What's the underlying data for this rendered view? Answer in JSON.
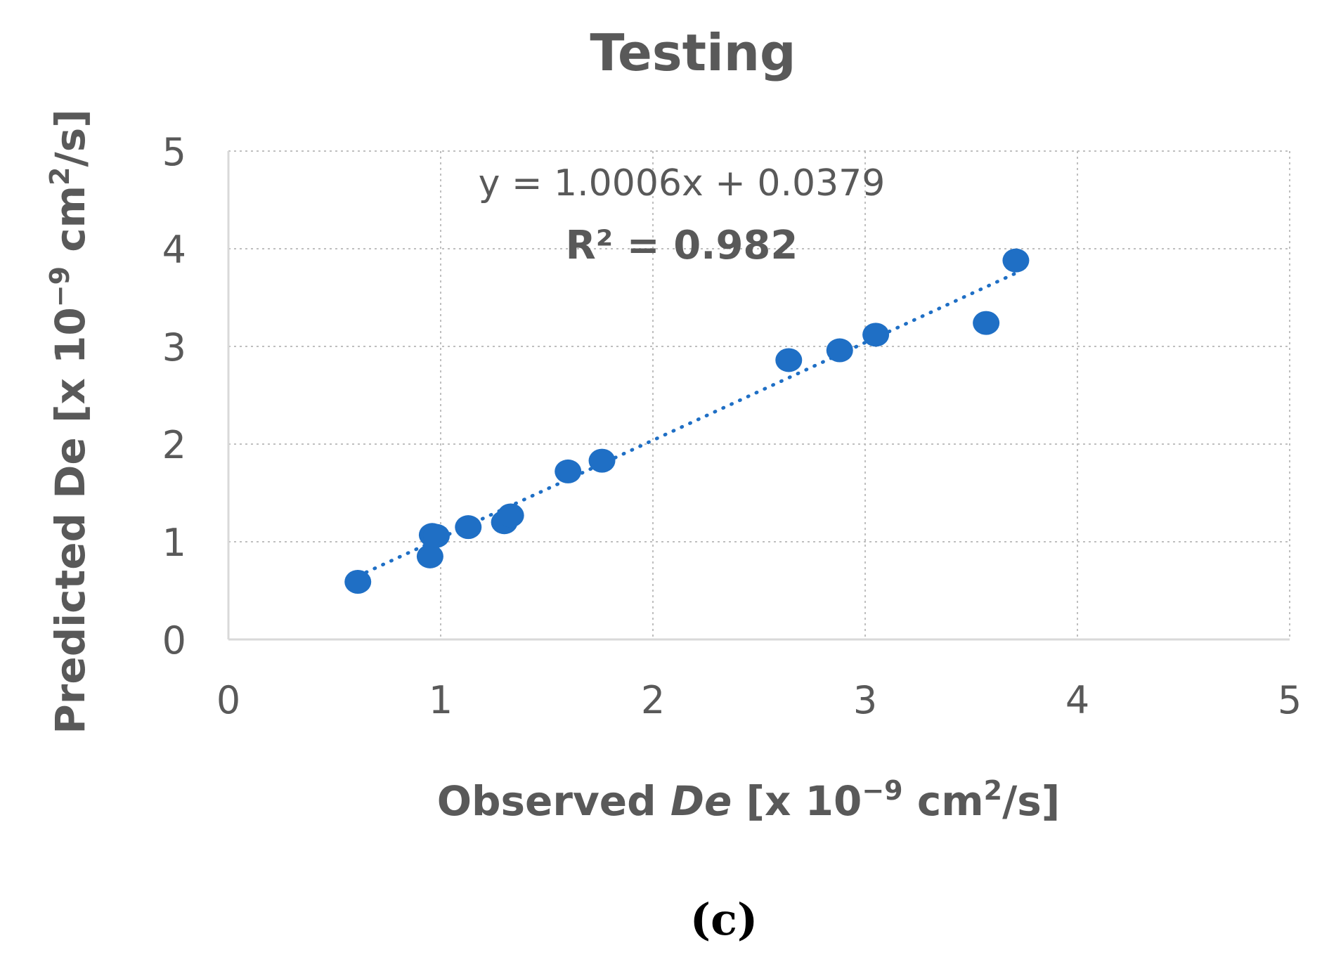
{
  "chart_data": {
    "type": "scatter",
    "title": "Testing",
    "xlabel": {
      "pre": "Observed ",
      "italic": "De",
      "unit": " [x 10",
      "exp": "−9",
      "mid": " cm",
      "sq": "2",
      "end": "/s]"
    },
    "ylabel": {
      "pre": "Predicted De",
      "unit": " [x 10",
      "exp": "−9",
      "mid": " cm",
      "sq": "2",
      "end": "/s]"
    },
    "xlim": [
      0,
      5
    ],
    "ylim": [
      0,
      5
    ],
    "xticks": [
      "0",
      "1",
      "2",
      "3",
      "4",
      "5"
    ],
    "yticks": [
      "0",
      "1",
      "2",
      "3",
      "4",
      "5"
    ],
    "grid": true,
    "series": [
      {
        "name": "Testing",
        "color": "#1f6fc5",
        "x": [
          0.61,
          0.95,
          0.96,
          0.98,
          1.13,
          1.3,
          1.33,
          1.6,
          1.76,
          2.64,
          2.88,
          3.05,
          3.57,
          3.71
        ],
        "y": [
          0.59,
          0.85,
          1.07,
          1.06,
          1.15,
          1.2,
          1.27,
          1.72,
          1.83,
          2.86,
          2.96,
          3.12,
          3.24,
          3.88
        ]
      }
    ],
    "trendline": {
      "type": "linear",
      "style": "dotted",
      "slope": 1.0006,
      "intercept": 0.0379,
      "x_range": [
        0.61,
        3.71
      ]
    },
    "annotations": {
      "equation": "y = 1.0006x + 0.0379",
      "r2": "R² = 0.982"
    }
  },
  "panel_label": "(c)"
}
